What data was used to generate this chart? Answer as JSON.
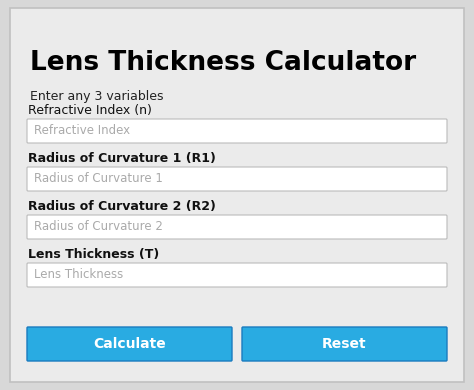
{
  "title": "Lens Thickness Calculator",
  "subtitle": "Enter any 3 variables",
  "fields": [
    {
      "label": "Refractive Index (n)",
      "placeholder": "Refractive Index",
      "label_bold": false
    },
    {
      "label": "Radius of Curvature 1 (R1)",
      "placeholder": "Radius of Curvature 1",
      "label_bold": true
    },
    {
      "label": "Radius of Curvature 2 (R2)",
      "placeholder": "Radius of Curvature 2",
      "label_bold": true
    },
    {
      "label": "Lens Thickness (T)",
      "placeholder": "Lens Thickness",
      "label_bold": true
    }
  ],
  "buttons": [
    {
      "text": "Calculate",
      "color": "#29abe2"
    },
    {
      "text": "Reset",
      "color": "#29abe2"
    }
  ],
  "bg_color": "#d8d8d8",
  "card_color": "#ebebeb",
  "input_bg": "#ffffff",
  "input_border": "#bbbbbb",
  "label_color": "#111111",
  "placeholder_color": "#aaaaaa",
  "title_color": "#000000",
  "subtitle_color": "#222222",
  "button_text_color": "#ffffff",
  "button_border": "#1a7bbf",
  "figsize": [
    4.74,
    3.9
  ],
  "dpi": 100
}
